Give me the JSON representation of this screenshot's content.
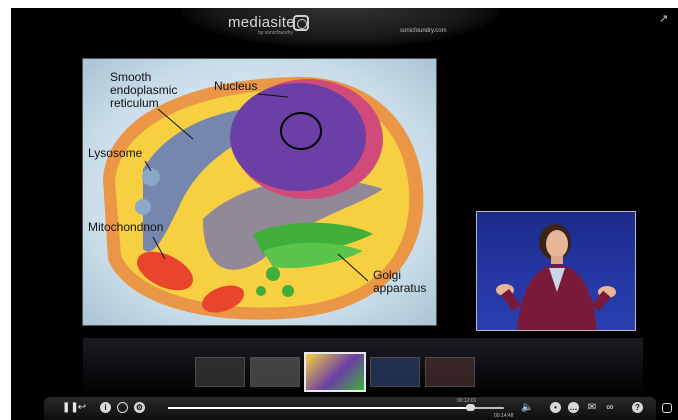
{
  "header": {
    "logo_text": "mediasite",
    "logo_sub": "by sonicfoundry",
    "site_url": "sonicfoundry.com",
    "expand_icon": "expand-arrow-icon"
  },
  "slide": {
    "labels": {
      "smooth_er": "Smooth endoplasmic reticulum",
      "nucleus": "Nucleus",
      "lysosome": "Lysosome",
      "mitochondrion": "Mitochondnon",
      "golgi": "Golgi apparatus"
    },
    "colors": {
      "cytoplasm": "#f6d040",
      "nucleus": "#6b3fa6",
      "er": "#4a6fd0",
      "golgi": "#3fae3a",
      "mitochondrion": "#e8452c",
      "membrane": "#f08a2a"
    }
  },
  "thumbnails": {
    "count": 5,
    "active_index": 2
  },
  "controls": {
    "progress": 0.9,
    "time_current": "00:12:01",
    "time_total": "00:14:48",
    "icons": [
      "pause-icon",
      "back-icon",
      "info-icon",
      "zoom-icon",
      "settings-icon",
      "volume-icon",
      "chat-icon",
      "comment-icon",
      "email-icon",
      "link-icon",
      "help-icon",
      "mediasite-icon"
    ]
  }
}
